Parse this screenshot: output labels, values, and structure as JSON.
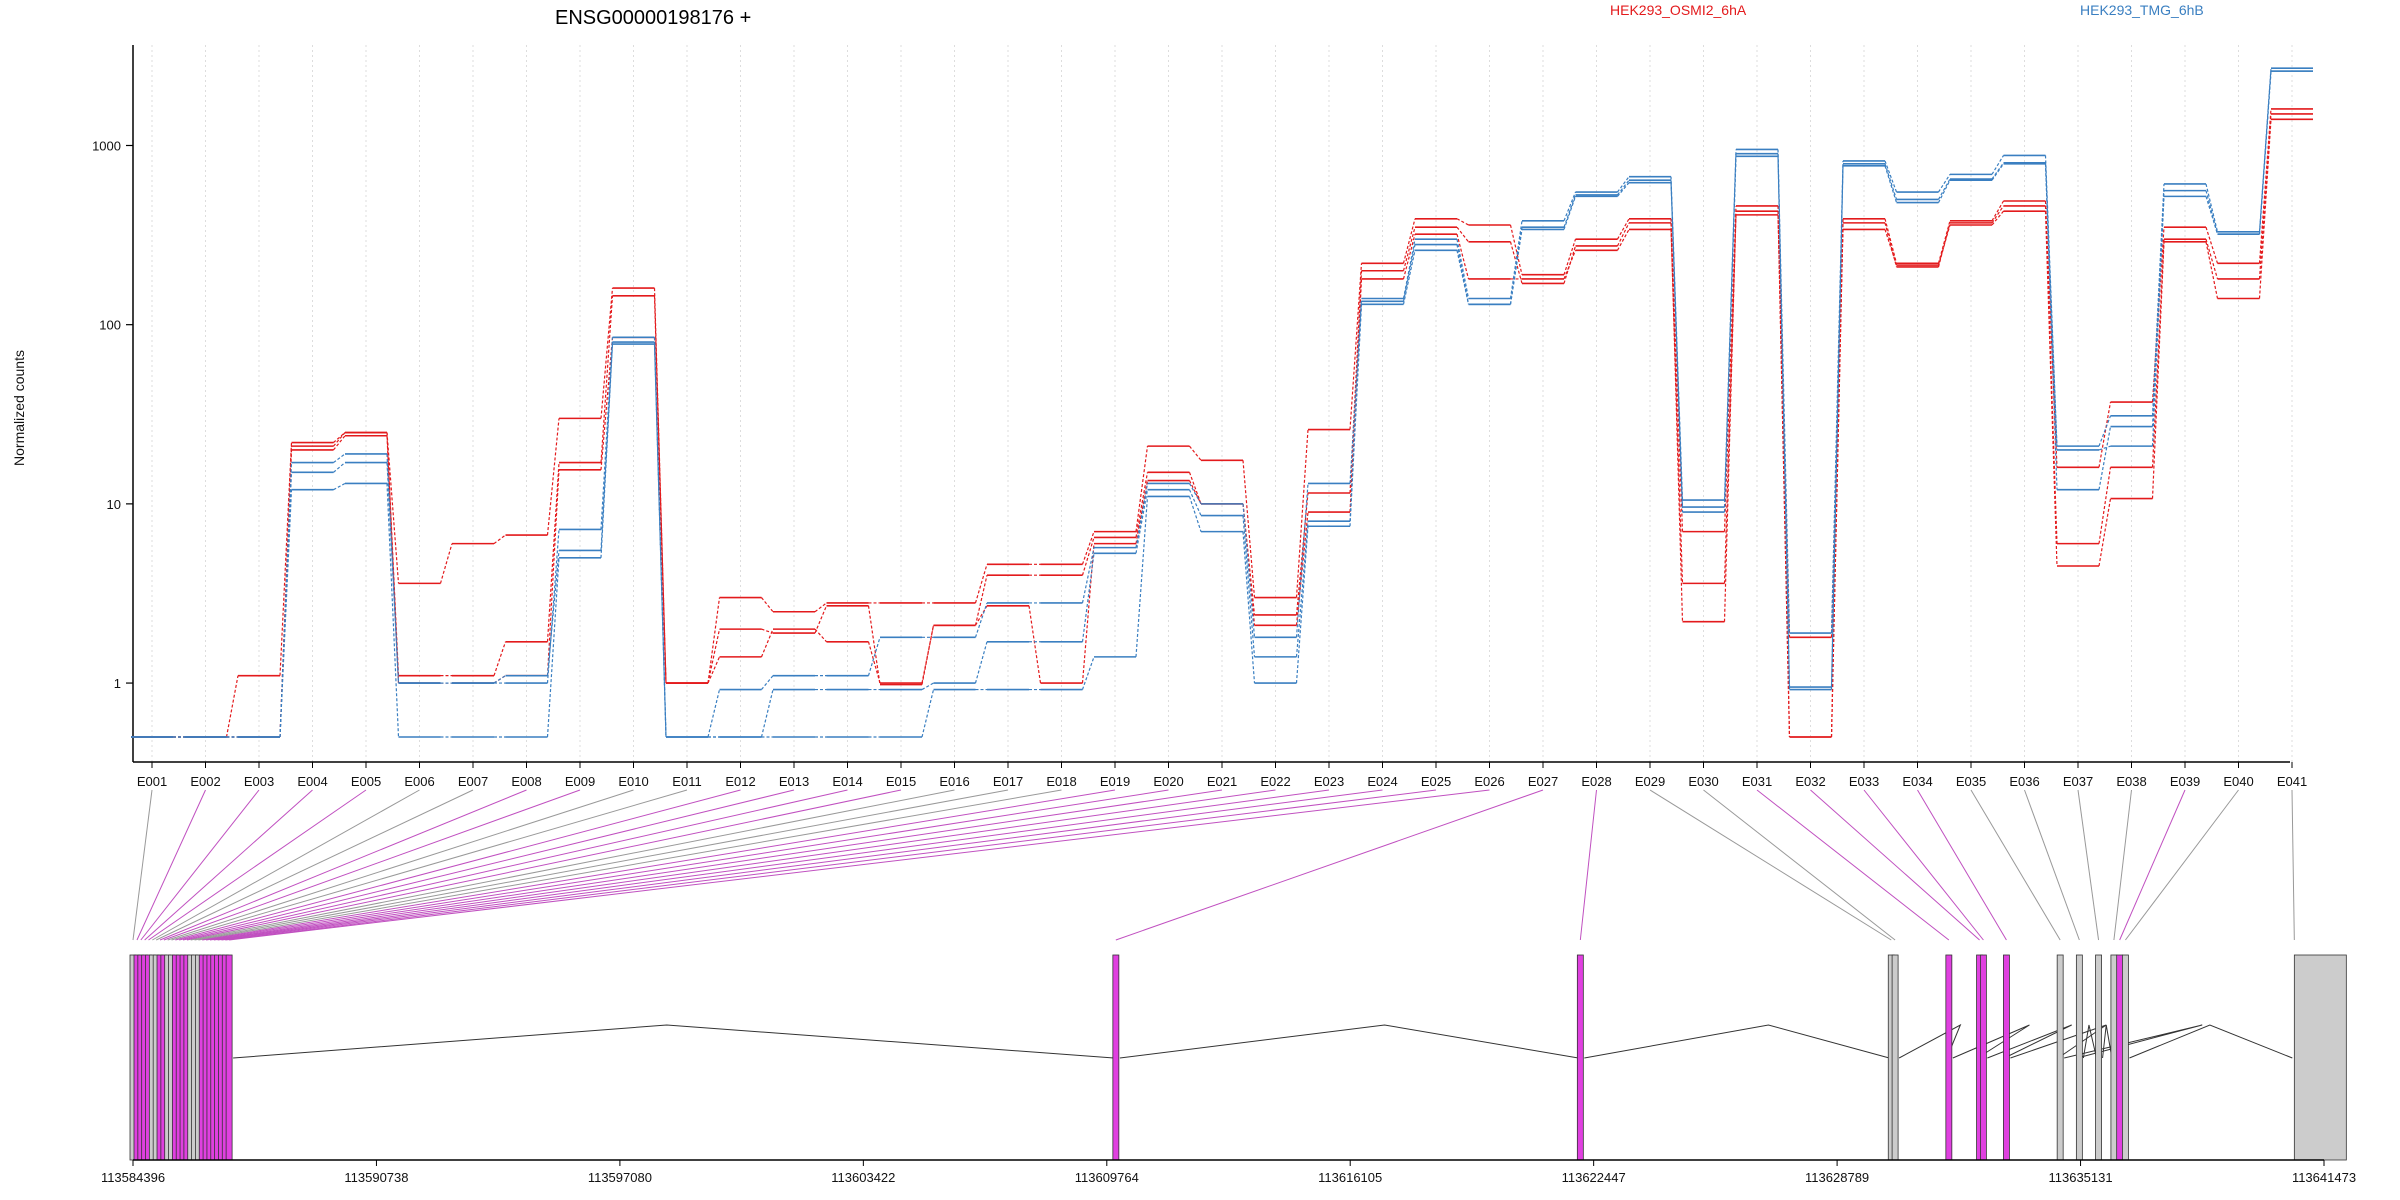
{
  "chart_data": {
    "type": "line",
    "title": "ENSG00000198176 +",
    "ylabel": "Normalized counts",
    "yscale": "log",
    "ylim": [
      0.5,
      3000
    ],
    "yticks": [
      1,
      10,
      100,
      1000
    ],
    "grid": "vertical dotted lines at exon centers",
    "legend_position": "top",
    "legend": [
      {
        "name": "HEK293_OSMI2_6hA",
        "color": "#e31a1c"
      },
      {
        "name": "HEK293_TMG_6hB",
        "color": "#3a7fc1"
      }
    ],
    "categories": [
      "E001",
      "E002",
      "E003",
      "E004",
      "E005",
      "E006",
      "E007",
      "E008",
      "E009",
      "E010",
      "E011",
      "E012",
      "E013",
      "E014",
      "E015",
      "E016",
      "E017",
      "E018",
      "E019",
      "E020",
      "E021",
      "E022",
      "E023",
      "E024",
      "E025",
      "E026",
      "E027",
      "E028",
      "E029",
      "E030",
      "E031",
      "E032",
      "E033",
      "E034",
      "E035",
      "E036",
      "E037",
      "E038",
      "E039",
      "E040",
      "E041"
    ],
    "series": [
      {
        "group": "HEK293_OSMI2_6hA",
        "color": "#e31a1c",
        "values": [
          0.5,
          0.5,
          1.1,
          22,
          25,
          3.6,
          6,
          6.7,
          30,
          160,
          1,
          3,
          2.5,
          2.8,
          2.8,
          2.8,
          4.6,
          4.6,
          7,
          21,
          17.5,
          3,
          26,
          220,
          390,
          360,
          190,
          300,
          390,
          7,
          460,
          0.5,
          390,
          220,
          380,
          490,
          16,
          37,
          350,
          220,
          1600
        ]
      },
      {
        "group": "HEK293_OSMI2_6hA",
        "color": "#e31a1c",
        "values": [
          0.5,
          0.5,
          0.5,
          21,
          25,
          1.1,
          1.1,
          1.7,
          17,
          145,
          1,
          1.4,
          2,
          1.7,
          1,
          2.1,
          4,
          4,
          6.5,
          15,
          10,
          2.4,
          11.5,
          200,
          350,
          290,
          170,
          275,
          370,
          2.2,
          430,
          0.5,
          370,
          210,
          370,
          460,
          6,
          16,
          300,
          180,
          1500
        ]
      },
      {
        "group": "HEK293_OSMI2_6hA",
        "color": "#e31a1c",
        "values": [
          0.5,
          0.5,
          0.5,
          20,
          24,
          1,
          1,
          1.1,
          15.5,
          85,
          1,
          2,
          1.9,
          2.7,
          0.98,
          2.1,
          2.7,
          1,
          6,
          13.5,
          10,
          2.1,
          9,
          180,
          320,
          180,
          180,
          260,
          340,
          3.6,
          410,
          1.8,
          340,
          215,
          360,
          430,
          4.5,
          10.7,
          290,
          140,
          1400
        ]
      },
      {
        "group": "HEK293_TMG_6hB",
        "color": "#3a7fc1",
        "values": [
          0.5,
          0.5,
          0.5,
          17,
          19,
          1,
          1,
          1,
          7.2,
          85,
          0.5,
          0.92,
          1.1,
          1.1,
          1.8,
          1.8,
          2.8,
          2.8,
          5.7,
          13,
          10,
          1.8,
          13,
          140,
          300,
          140,
          380,
          550,
          670,
          10.5,
          950,
          0.95,
          820,
          550,
          690,
          880,
          21,
          31,
          610,
          330,
          2700
        ]
      },
      {
        "group": "HEK293_TMG_6hB",
        "color": "#3a7fc1",
        "values": [
          0.5,
          0.5,
          0.5,
          15,
          17,
          1,
          1,
          1.1,
          5.5,
          80,
          0.5,
          0.5,
          0.92,
          0.92,
          0.92,
          1,
          1.7,
          1.7,
          5.3,
          12,
          8.6,
          1.4,
          8,
          135,
          280,
          130,
          350,
          530,
          640,
          9,
          900,
          1.9,
          790,
          500,
          650,
          800,
          12,
          27,
          560,
          320,
          2600
        ]
      },
      {
        "group": "HEK293_TMG_6hB",
        "color": "#3a7fc1",
        "values": [
          0.5,
          0.5,
          0.5,
          12,
          13,
          0.5,
          0.5,
          0.5,
          5,
          78,
          0.5,
          0.5,
          0.5,
          0.5,
          0.5,
          0.92,
          0.92,
          0.92,
          1.4,
          11,
          7,
          1,
          7.5,
          130,
          260,
          130,
          340,
          520,
          620,
          9.6,
          870,
          0.92,
          770,
          480,
          640,
          790,
          20,
          21,
          520,
          320,
          2600
        ]
      }
    ],
    "genomic_axis": {
      "tick_labels": [
        "113584396",
        "113590738",
        "113597080",
        "113603422",
        "113609764",
        "113616105",
        "113622447",
        "113628789",
        "113635131",
        "113641473"
      ]
    },
    "gene_model": {
      "exon_highlight_color": "#e040e0",
      "exon_base_color": "#cccccc",
      "exons": [
        {
          "id": "E001",
          "pos": 113584396,
          "highlight": false
        },
        {
          "id": "E002",
          "pos": 113584500,
          "highlight": true
        },
        {
          "id": "E003",
          "pos": 113584600,
          "highlight": true
        },
        {
          "id": "E004",
          "pos": 113584700,
          "highlight": true
        },
        {
          "id": "E005",
          "pos": 113584800,
          "highlight": true
        },
        {
          "id": "E006",
          "pos": 113584900,
          "highlight": false
        },
        {
          "id": "E007",
          "pos": 113585000,
          "highlight": false
        },
        {
          "id": "E008",
          "pos": 113585100,
          "highlight": true
        },
        {
          "id": "E009",
          "pos": 113585200,
          "highlight": true
        },
        {
          "id": "E010",
          "pos": 113585300,
          "highlight": false
        },
        {
          "id": "E011",
          "pos": 113585400,
          "highlight": false
        },
        {
          "id": "E012",
          "pos": 113585500,
          "highlight": true
        },
        {
          "id": "E013",
          "pos": 113585600,
          "highlight": true
        },
        {
          "id": "E014",
          "pos": 113585700,
          "highlight": true
        },
        {
          "id": "E015",
          "pos": 113585800,
          "highlight": true
        },
        {
          "id": "E016",
          "pos": 113585900,
          "highlight": false
        },
        {
          "id": "E017",
          "pos": 113586000,
          "highlight": false
        },
        {
          "id": "E018",
          "pos": 113586100,
          "highlight": false
        },
        {
          "id": "E019",
          "pos": 113586200,
          "highlight": true
        },
        {
          "id": "E020",
          "pos": 113586300,
          "highlight": true
        },
        {
          "id": "E021",
          "pos": 113586400,
          "highlight": true
        },
        {
          "id": "E022",
          "pos": 113586500,
          "highlight": true
        },
        {
          "id": "E023",
          "pos": 113586600,
          "highlight": true
        },
        {
          "id": "E024",
          "pos": 113586700,
          "highlight": true
        },
        {
          "id": "E025",
          "pos": 113586800,
          "highlight": true
        },
        {
          "id": "E026",
          "pos": 113586900,
          "highlight": true
        },
        {
          "id": "E027",
          "pos": 113610000,
          "highlight": true
        },
        {
          "id": "E028",
          "pos": 113622100,
          "highlight": true
        },
        {
          "id": "E029",
          "pos": 113630200,
          "highlight": false
        },
        {
          "id": "E030",
          "pos": 113630300,
          "highlight": false
        },
        {
          "id": "E031",
          "pos": 113631700,
          "highlight": true
        },
        {
          "id": "E032",
          "pos": 113632500,
          "highlight": true
        },
        {
          "id": "E033",
          "pos": 113632600,
          "highlight": true
        },
        {
          "id": "E034",
          "pos": 113633200,
          "highlight": true
        },
        {
          "id": "E035",
          "pos": 113634600,
          "highlight": false
        },
        {
          "id": "E036",
          "pos": 113635100,
          "highlight": false
        },
        {
          "id": "E037",
          "pos": 113635600,
          "highlight": false
        },
        {
          "id": "E038",
          "pos": 113636000,
          "highlight": false
        },
        {
          "id": "E039",
          "pos": 113636150,
          "highlight": true
        },
        {
          "id": "E040",
          "pos": 113636300,
          "highlight": false
        },
        {
          "id": "E041",
          "pos": 113640700,
          "highlight": false
        }
      ],
      "intron_apex_positions": [
        113598300,
        113617000,
        113627000,
        113632000,
        113633800,
        113634900,
        113635800,
        113638300
      ]
    }
  }
}
